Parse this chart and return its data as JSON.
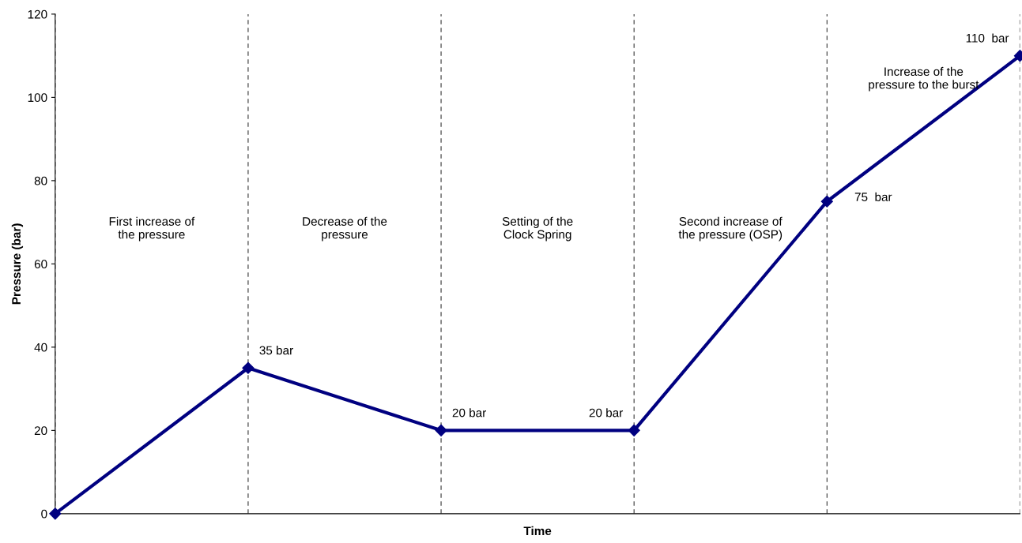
{
  "chart_data": {
    "type": "line",
    "xlabel": "Time",
    "ylabel": "Pressure (bar)",
    "categories": [
      null,
      null,
      null,
      null,
      null,
      null
    ],
    "series": [
      {
        "color": "#000080",
        "values": [
          0,
          35,
          20,
          20,
          75,
          110
        ],
        "value_labels": [
          null,
          "35 bar",
          "20 bar",
          "20 bar",
          "75  bar",
          "110  bar"
        ]
      }
    ],
    "ylim": [
      0,
      120
    ],
    "yticks": [
      0,
      20,
      40,
      60,
      80,
      100,
      120
    ],
    "grid": "x",
    "marker": "diamond",
    "line_style": "solid",
    "annotations": [
      "First increase of\nthe pressure",
      "Decrease of the\npressure",
      "Setting of the\nClock Spring",
      "Second increase of\nthe pressure (OSP)",
      "Increase of the\npressure to the burst"
    ]
  }
}
